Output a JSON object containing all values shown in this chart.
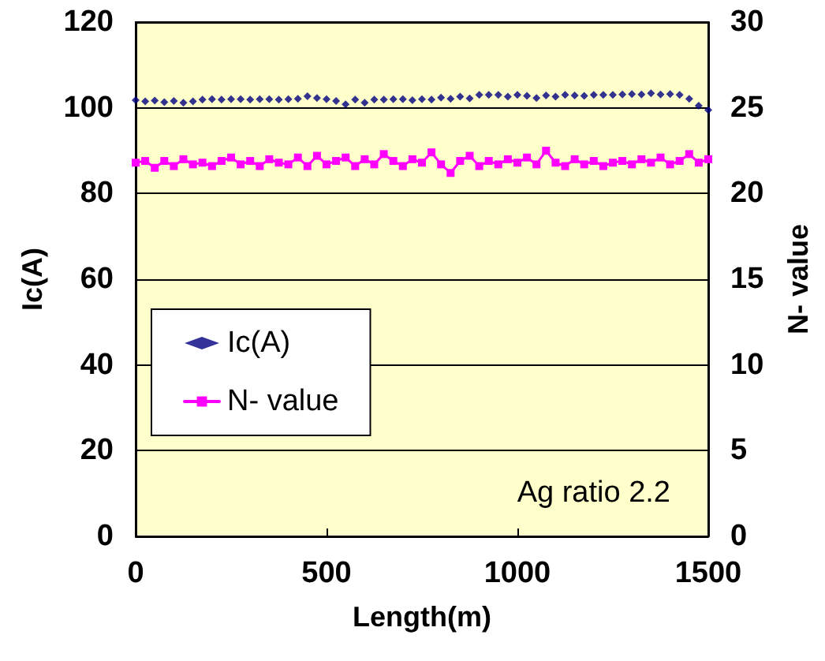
{
  "chart_data": {
    "type": "line",
    "xlabel": "Length(m)",
    "ylabel": "Ic(A)",
    "y2label": "N- value",
    "x": [
      0,
      25,
      50,
      75,
      100,
      125,
      150,
      175,
      200,
      225,
      250,
      275,
      300,
      325,
      350,
      375,
      400,
      425,
      450,
      475,
      500,
      525,
      550,
      575,
      600,
      625,
      650,
      675,
      700,
      725,
      750,
      775,
      800,
      825,
      850,
      875,
      900,
      925,
      950,
      975,
      1000,
      1025,
      1050,
      1075,
      1100,
      1125,
      1150,
      1175,
      1200,
      1225,
      1250,
      1275,
      1300,
      1325,
      1350,
      1375,
      1400,
      1425,
      1450,
      1475,
      1500
    ],
    "series": [
      {
        "name": "Ic(A)",
        "type": "scatter",
        "marker": "diamond",
        "color": "#000080",
        "values": [
          101.8,
          101.5,
          101.7,
          101.3,
          101.6,
          101.2,
          101.5,
          101.9,
          102.0,
          101.9,
          102.0,
          102.0,
          101.9,
          102.0,
          102.0,
          101.9,
          102.0,
          102.1,
          102.7,
          102.3,
          102.0,
          101.6,
          100.8,
          101.9,
          101.2,
          101.9,
          101.9,
          102.0,
          102.0,
          101.8,
          102.0,
          101.9,
          102.4,
          102.1,
          102.6,
          102.2,
          103.0,
          103.0,
          103.0,
          102.6,
          103.0,
          102.8,
          102.3,
          102.9,
          102.6,
          103.0,
          102.9,
          102.8,
          103.0,
          103.0,
          103.0,
          103.1,
          103.2,
          103.1,
          103.4,
          103.1,
          103.2,
          103.0,
          102.1,
          100.5,
          99.5
        ]
      },
      {
        "name": "N- value",
        "type": "line",
        "axis": "y2",
        "marker": "square",
        "color": "#ff00ff",
        "values": [
          21.8,
          21.9,
          21.5,
          21.9,
          21.6,
          22.0,
          21.7,
          21.8,
          21.6,
          21.9,
          22.1,
          21.7,
          21.9,
          21.6,
          22.0,
          21.8,
          21.7,
          22.1,
          21.6,
          22.2,
          21.7,
          21.9,
          22.1,
          21.6,
          22.0,
          21.7,
          22.3,
          21.9,
          21.6,
          22.0,
          21.8,
          22.4,
          21.7,
          21.2,
          21.9,
          22.2,
          21.6,
          21.9,
          21.7,
          22.0,
          21.8,
          22.1,
          21.7,
          22.5,
          21.8,
          21.6,
          22.0,
          21.7,
          21.9,
          21.6,
          21.8,
          21.9,
          21.7,
          22.0,
          21.8,
          22.1,
          21.7,
          21.9,
          22.3,
          21.8,
          22.0
        ]
      }
    ],
    "xlim": [
      0,
      1500
    ],
    "xticks": [
      0,
      500,
      1000,
      1500
    ],
    "ylim": [
      0,
      120
    ],
    "yticks": [
      0,
      20,
      40,
      60,
      80,
      100,
      120
    ],
    "y2lim": [
      0,
      30
    ],
    "y2ticks": [
      0,
      5,
      10,
      15,
      20,
      25,
      30
    ],
    "grid": "y",
    "legend": "left",
    "annotations": [
      "Ag ratio 2.2"
    ]
  }
}
